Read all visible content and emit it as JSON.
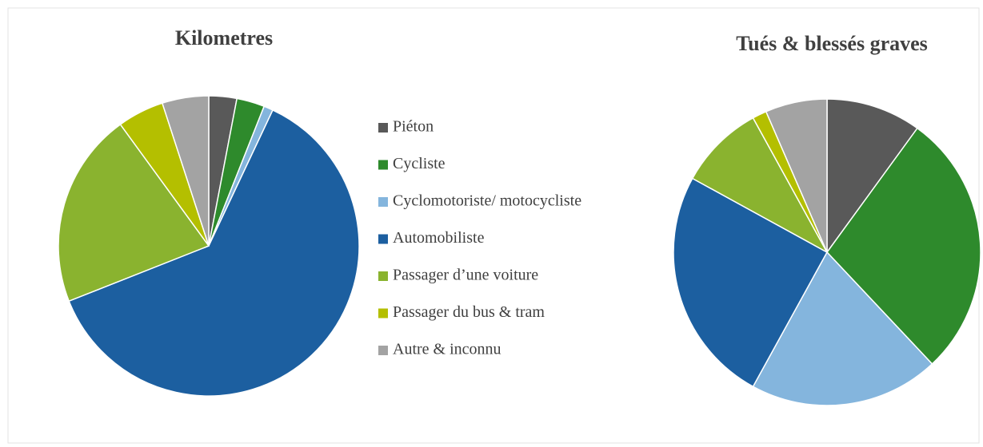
{
  "chart_data": [
    {
      "type": "pie",
      "title": "Kilometres",
      "categories": [
        "Piéton",
        "Cycliste",
        "Cyclomotoriste/ motocycliste",
        "Automobiliste",
        "Passager d’une voiture",
        "Passager du bus & tram",
        "Autre & inconnu"
      ],
      "values": [
        3,
        3,
        1,
        62,
        21,
        5,
        5
      ],
      "colors": [
        "#595959",
        "#2e8a2c",
        "#84b5dd",
        "#1c5fa0",
        "#8ab32f",
        "#b4bf00",
        "#a3a3a3"
      ]
    },
    {
      "type": "pie",
      "title": "Tués & blessés graves",
      "categories": [
        "Piéton",
        "Cycliste",
        "Cyclomotoriste/ motocycliste",
        "Automobiliste",
        "Passager d’une voiture",
        "Passager du bus & tram",
        "Autre & inconnu"
      ],
      "values": [
        10,
        28,
        20,
        25,
        9,
        1.5,
        6.5
      ],
      "colors": [
        "#595959",
        "#2e8a2c",
        "#84b5dd",
        "#1c5fa0",
        "#8ab32f",
        "#b4bf00",
        "#a3a3a3"
      ]
    }
  ]
}
